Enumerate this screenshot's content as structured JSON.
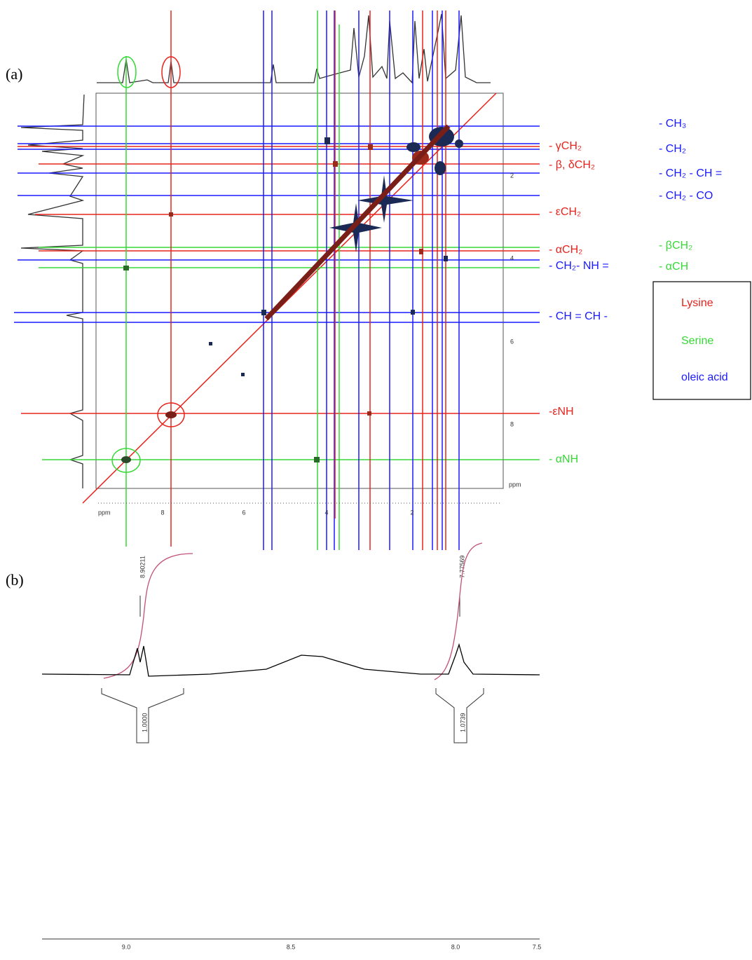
{
  "panel_a": {
    "label": "(a)",
    "axis_unit": "ppm",
    "bottom_ticks": [
      "8",
      "6",
      "4",
      "2"
    ],
    "right_ticks": [
      "2",
      "4",
      "6",
      "8"
    ],
    "red_labels": [
      "- γCH₂",
      "- β, δCH₂",
      "- εCH₂",
      "- αCH₂",
      "-εNH"
    ],
    "blue_labels": [
      "- CH₂- NH =",
      "- CH = CH -"
    ],
    "green_labels": [
      "- αNH"
    ],
    "oleic_groups": [
      "- CH₃",
      "- CH₂",
      "- CH₂ - CH =",
      "- CH₂ - CO"
    ],
    "serine_groups": [
      "- βCH₂",
      "- αCH"
    ],
    "legend": [
      "Lysine",
      "Serine",
      "oleic acid"
    ]
  },
  "panel_b": {
    "label": "(b)",
    "peaks": [
      "8.90211",
      "7.77569"
    ],
    "integrals": [
      "1.0000",
      "1.0739"
    ],
    "axis_ticks": [
      "9.0",
      "8.5",
      "8.0",
      "7.5"
    ]
  }
}
